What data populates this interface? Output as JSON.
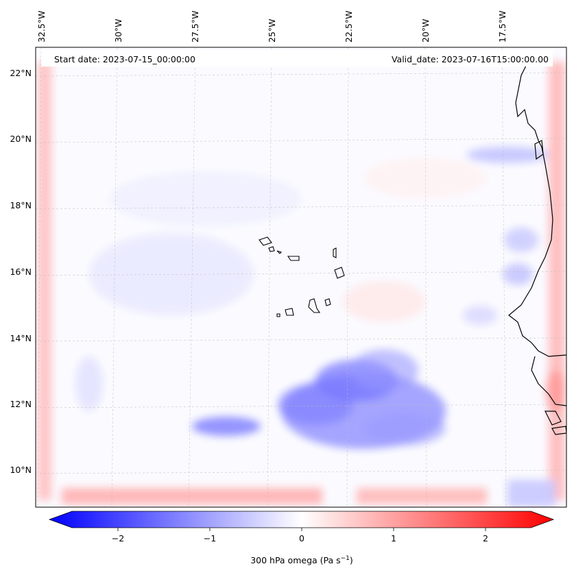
{
  "header": {
    "start_date": "Start date: 2023-07-15_00:00:00",
    "valid_date": "Valid_date: 2023-07-16T15:00:00.00"
  },
  "map": {
    "lon_labels": [
      "32.5°W",
      "30°W",
      "27.5°W",
      "25°W",
      "22.5°W",
      "20°W",
      "17.5°W"
    ],
    "lat_labels": [
      "22°N",
      "20°N",
      "18°N",
      "16°N",
      "14°N",
      "12°N",
      "10°N"
    ],
    "field": "300 hPa omega",
    "colormap": "bwr",
    "colors": {
      "negative": "#0000ff",
      "zero": "#ffffff",
      "positive": "#ff0000",
      "coastline": "#000000"
    }
  },
  "colorbar": {
    "ticks": [
      "−2",
      "−1",
      "0",
      "1",
      "2"
    ],
    "label_main": "300 hPa omega (Pa s",
    "label_sup": "−1",
    "label_end": ")",
    "range": [
      -2.6,
      2.6
    ],
    "extend": "both"
  }
}
